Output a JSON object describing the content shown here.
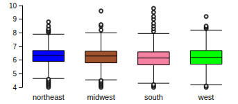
{
  "chart_data": {
    "type": "boxplot",
    "categories": [
      "northeast",
      "midwest",
      "south",
      "west"
    ],
    "colors": [
      "#0000ff",
      "#a0522d",
      "#f4819f",
      "#00ff00"
    ],
    "stats": [
      [
        4.65,
        5.9,
        6.35,
        6.7,
        7.9
      ],
      [
        4.55,
        5.8,
        6.3,
        6.65,
        8.0
      ],
      [
        4.3,
        5.65,
        6.15,
        6.6,
        7.95
      ],
      [
        4.2,
        5.7,
        6.2,
        6.7,
        8.2
      ]
    ],
    "outliers": [
      [
        8.0,
        8.1,
        8.2,
        8.3,
        8.5,
        8.8,
        4.0,
        4.1,
        4.2,
        4.3,
        4.4,
        4.5,
        4.6
      ],
      [
        8.2,
        8.5,
        8.6,
        9.6,
        4.0,
        4.1,
        4.2,
        4.3,
        4.4,
        4.5
      ],
      [
        8.1,
        8.3,
        8.5,
        8.7,
        9.0,
        9.2,
        9.5,
        9.8,
        4.0,
        4.1,
        4.2
      ],
      [
        8.3,
        8.4,
        8.5,
        9.2,
        4.0,
        4.1
      ]
    ],
    "ylim": [
      4,
      10
    ],
    "yticks": [
      4,
      5,
      6,
      7,
      8,
      9,
      10
    ],
    "grid": false
  }
}
